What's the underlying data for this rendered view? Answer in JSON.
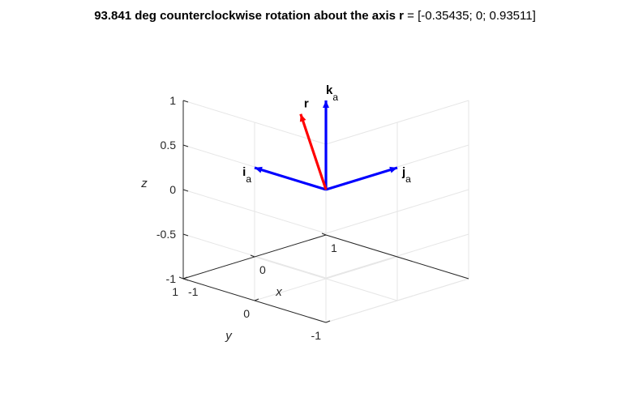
{
  "title": {
    "bold": "93.841 deg counterclockwise rotation about the axis r",
    "rest": " = [-0.35435; 0; 0.93511]"
  },
  "chart_data": {
    "type": "quiver3d",
    "title": "93.841 deg counterclockwise rotation about the axis r = [-0.35435; 0; 0.93511]",
    "xlabel": "x",
    "ylabel": "y",
    "zlabel": "z",
    "xlim": [
      -1,
      1
    ],
    "ylim": [
      -1,
      1
    ],
    "zlim": [
      -1,
      1
    ],
    "xticks": [
      "-1",
      "0",
      "1"
    ],
    "yticks": [
      "-1",
      "0",
      "1"
    ],
    "zticks": [
      "-1",
      "-0.5",
      "0",
      "0.5",
      "1"
    ],
    "grid": true,
    "view": "isometric",
    "vectors": [
      {
        "name": "i",
        "subscript": "a",
        "color": "#0000ff",
        "x": 0,
        "y": 1,
        "z": 0
      },
      {
        "name": "j",
        "subscript": "a",
        "color": "#0000ff",
        "x": 1,
        "y": 0,
        "z": 0
      },
      {
        "name": "k",
        "subscript": "a",
        "color": "#0000ff",
        "x": 0,
        "y": 0,
        "z": 1
      },
      {
        "name": "r",
        "subscript": "",
        "color": "#ff0000",
        "x": -0.35435,
        "y": 0,
        "z": 0.93511
      }
    ]
  }
}
